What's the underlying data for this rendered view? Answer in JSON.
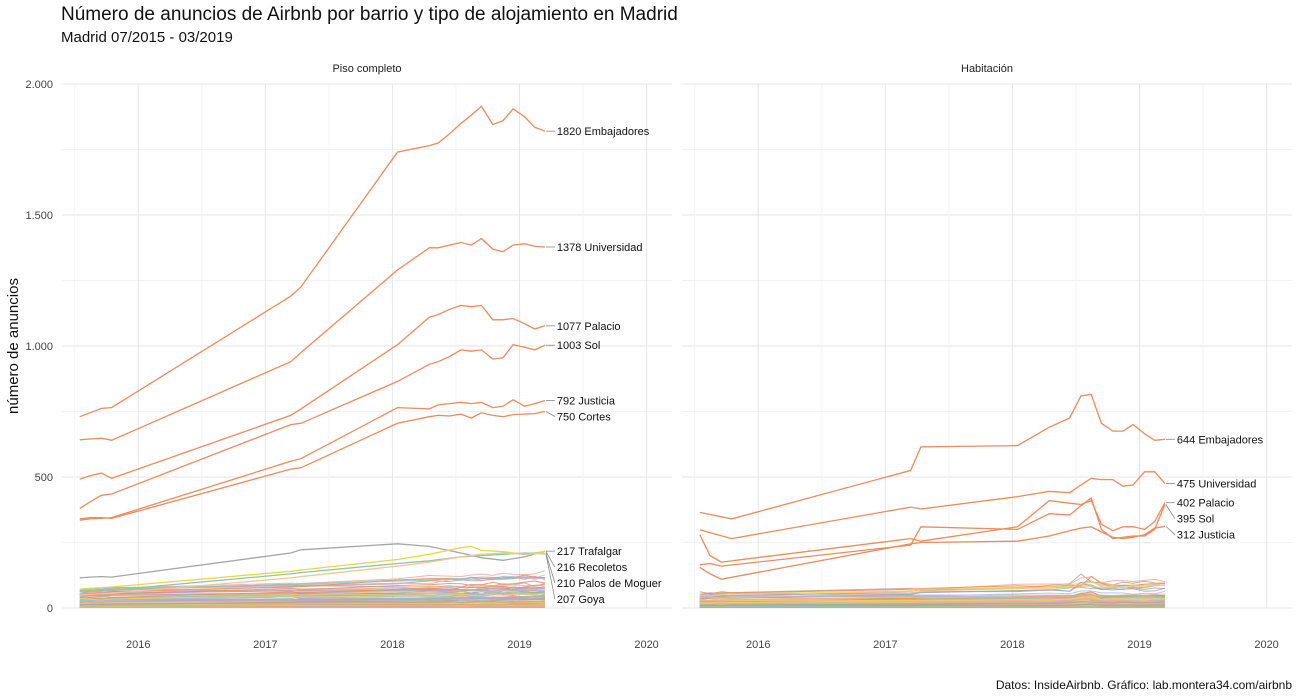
{
  "title": "Número de anuncios de Airbnb por barrio y tipo de alojamiento en Madrid",
  "subtitle": "Madrid 07/2015 - 03/2019",
  "caption": "Datos: InsideAirbnb. Gráfico: lab.montera34.com/airbnb",
  "chart_data": {
    "type": "line",
    "ylabel": "número de anuncios",
    "ylim": [
      0,
      2000
    ],
    "xlim": [
      2015.4,
      2020.2
    ],
    "y_ticks": [
      0,
      500,
      1000,
      1500,
      2000
    ],
    "y_tick_labels": [
      "0",
      "500",
      "1.000",
      "1.500",
      "2.000"
    ],
    "x_ticks": [
      2016,
      2017,
      2018,
      2019,
      2020
    ],
    "x_tick_labels": [
      "2016",
      "2017",
      "2018",
      "2019",
      "2020"
    ],
    "grid": true,
    "highlight_color": "#f08a5d",
    "panels": [
      {
        "name": "Piso completo",
        "series": [
          {
            "name": "Embajadores",
            "label": "1820 Embajadores",
            "color": "#f08a5d",
            "x": [
              2015.54,
              2015.62,
              2015.71,
              2015.79,
              2017.2,
              2017.28,
              2018.04,
              2018.29,
              2018.36,
              2018.45,
              2018.54,
              2018.62,
              2018.7,
              2018.79,
              2018.87,
              2018.95,
              2019.04,
              2019.12,
              2019.2
            ],
            "y": [
              730,
              745,
              762,
              765,
              1190,
              1225,
              1740,
              1765,
              1775,
              1810,
              1850,
              1880,
              1915,
              1845,
              1860,
              1905,
              1875,
              1835,
              1820
            ]
          },
          {
            "name": "Universidad",
            "label": "1378 Universidad",
            "color": "#f08a5d",
            "x": [
              2015.54,
              2015.62,
              2015.71,
              2015.79,
              2017.2,
              2017.28,
              2018.04,
              2018.29,
              2018.36,
              2018.45,
              2018.54,
              2018.62,
              2018.7,
              2018.79,
              2018.87,
              2018.95,
              2019.04,
              2019.12,
              2019.2
            ],
            "y": [
              642,
              645,
              648,
              640,
              940,
              975,
              1290,
              1375,
              1375,
              1385,
              1395,
              1385,
              1410,
              1370,
              1360,
              1385,
              1390,
              1380,
              1378
            ]
          },
          {
            "name": "Palacio",
            "label": "1077 Palacio",
            "color": "#f08a5d",
            "x": [
              2015.54,
              2015.62,
              2015.71,
              2015.79,
              2017.2,
              2017.28,
              2018.04,
              2018.29,
              2018.36,
              2018.45,
              2018.54,
              2018.62,
              2018.7,
              2018.79,
              2018.87,
              2018.95,
              2019.04,
              2019.12,
              2019.2
            ],
            "y": [
              492,
              505,
              515,
              495,
              735,
              760,
              1005,
              1110,
              1120,
              1140,
              1155,
              1150,
              1155,
              1100,
              1100,
              1105,
              1085,
              1065,
              1077
            ]
          },
          {
            "name": "Sol",
            "label": "1003 Sol",
            "color": "#f08a5d",
            "x": [
              2015.54,
              2015.62,
              2015.71,
              2015.79,
              2017.2,
              2017.28,
              2018.04,
              2018.29,
              2018.36,
              2018.45,
              2018.54,
              2018.62,
              2018.7,
              2018.79,
              2018.87,
              2018.95,
              2019.04,
              2019.12,
              2019.2
            ],
            "y": [
              380,
              405,
              430,
              435,
              700,
              705,
              865,
              930,
              940,
              960,
              985,
              980,
              985,
              950,
              955,
              1005,
              995,
              985,
              1003
            ]
          },
          {
            "name": "Justicia",
            "label": "792 Justicia",
            "color": "#f08a5d",
            "x": [
              2015.54,
              2015.62,
              2015.71,
              2015.79,
              2017.2,
              2017.28,
              2018.04,
              2018.29,
              2018.36,
              2018.45,
              2018.54,
              2018.62,
              2018.7,
              2018.79,
              2018.87,
              2018.95,
              2019.04,
              2019.12,
              2019.2
            ],
            "y": [
              335,
              340,
              342,
              345,
              560,
              570,
              765,
              760,
              775,
              780,
              785,
              780,
              785,
              765,
              770,
              795,
              770,
              780,
              792
            ]
          },
          {
            "name": "Cortes",
            "label": "750 Cortes",
            "color": "#f08a5d",
            "x": [
              2015.54,
              2015.62,
              2015.71,
              2015.79,
              2017.2,
              2017.28,
              2018.04,
              2018.29,
              2018.36,
              2018.45,
              2018.54,
              2018.62,
              2018.7,
              2018.79,
              2018.87,
              2018.95,
              2019.04,
              2019.12,
              2019.2
            ],
            "y": [
              340,
              345,
              345,
              342,
              530,
              535,
              705,
              730,
              735,
              733,
              740,
              725,
              745,
              735,
              730,
              738,
              740,
              742,
              750
            ]
          },
          {
            "name": "Trafalgar",
            "label": "217 Trafalgar",
            "color": "#a6a6a6",
            "x": [
              2015.54,
              2015.62,
              2015.71,
              2015.79,
              2017.2,
              2017.28,
              2018.04,
              2018.29,
              2018.54,
              2018.7,
              2018.87,
              2019.04,
              2019.2
            ],
            "y": [
              115,
              118,
              120,
              118,
              210,
              222,
              245,
              235,
              210,
              192,
              182,
              195,
              217
            ]
          },
          {
            "name": "Recoletos",
            "label": "216 Recoletos",
            "color": "#e6d84a",
            "x": [
              2015.54,
              2015.62,
              2015.71,
              2015.79,
              2017.2,
              2017.28,
              2018.04,
              2018.29,
              2018.54,
              2018.62,
              2018.7,
              2018.87,
              2019.04,
              2019.2
            ],
            "y": [
              72,
              75,
              78,
              80,
              140,
              145,
              185,
              205,
              230,
              235,
              220,
              215,
              205,
              216
            ]
          },
          {
            "name": "Goya",
            "label": "207 Goya",
            "color": "#8dc6a8",
            "x": [
              2015.54,
              2015.62,
              2015.71,
              2015.79,
              2017.2,
              2017.28,
              2018.04,
              2018.29,
              2018.54,
              2018.7,
              2018.87,
              2019.04,
              2019.2
            ],
            "y": [
              62,
              64,
              66,
              68,
              130,
              135,
              170,
              180,
              195,
              200,
              205,
              210,
              207
            ]
          },
          {
            "name": "Palos de Moguer",
            "label": "210 Palos de Moguer",
            "color": "#f7c38e",
            "x": [
              2015.54,
              2015.62,
              2015.71,
              2015.79,
              2017.2,
              2017.28,
              2018.04,
              2018.29,
              2018.54,
              2018.7,
              2018.87,
              2019.04,
              2019.2
            ],
            "y": [
              50,
              52,
              55,
              56,
              115,
              120,
              160,
              175,
              195,
              205,
              210,
              205,
              210
            ]
          }
        ]
      },
      {
        "name": "Habitación",
        "series": [
          {
            "name": "Embajadores",
            "label": "644 Embajadores",
            "color": "#f08a5d",
            "x": [
              2015.54,
              2015.79,
              2017.2,
              2017.28,
              2018.04,
              2018.29,
              2018.45,
              2018.54,
              2018.62,
              2018.7,
              2018.79,
              2018.87,
              2018.95,
              2019.04,
              2019.12,
              2019.2
            ],
            "y": [
              365,
              340,
              525,
              615,
              620,
              690,
              725,
              810,
              815,
              705,
              675,
              675,
              700,
              665,
              640,
              644
            ]
          },
          {
            "name": "Universidad",
            "label": "475 Universidad",
            "color": "#f08a5d",
            "x": [
              2015.54,
              2015.79,
              2017.2,
              2017.28,
              2018.04,
              2018.29,
              2018.45,
              2018.54,
              2018.62,
              2018.7,
              2018.79,
              2018.87,
              2018.95,
              2019.04,
              2019.12,
              2019.2
            ],
            "y": [
              298,
              265,
              385,
              378,
              425,
              445,
              440,
              470,
              495,
              490,
              490,
              465,
              470,
              520,
              520,
              475
            ]
          },
          {
            "name": "Palacio",
            "label": "402 Palacio",
            "color": "#f08a5d",
            "x": [
              2015.54,
              2015.62,
              2015.71,
              2017.2,
              2017.28,
              2018.04,
              2018.29,
              2018.45,
              2018.54,
              2018.62,
              2018.7,
              2018.79,
              2018.87,
              2018.95,
              2019.04,
              2019.12,
              2019.2
            ],
            "y": [
              280,
              200,
              175,
              265,
              255,
              310,
              410,
              400,
              395,
              410,
              320,
              295,
              310,
              310,
              300,
              330,
              402
            ]
          },
          {
            "name": "Sol",
            "label": "395 Sol",
            "color": "#f08a5d",
            "x": [
              2015.54,
              2015.62,
              2015.71,
              2017.2,
              2017.28,
              2018.04,
              2018.29,
              2018.45,
              2018.54,
              2018.62,
              2018.7,
              2018.79,
              2018.87,
              2018.95,
              2019.04,
              2019.12,
              2019.2
            ],
            "y": [
              165,
              170,
              160,
              240,
              310,
              300,
              360,
              355,
              390,
              420,
              300,
              265,
              270,
              275,
              275,
              300,
              395
            ]
          },
          {
            "name": "Justicia",
            "label": "312 Justicia",
            "color": "#f08a5d",
            "x": [
              2015.54,
              2015.62,
              2015.71,
              2017.2,
              2017.28,
              2018.04,
              2018.29,
              2018.45,
              2018.54,
              2018.62,
              2018.7,
              2018.79,
              2018.87,
              2018.95,
              2019.04,
              2019.12,
              2019.2
            ],
            "y": [
              155,
              130,
              110,
              245,
              250,
              255,
              275,
              295,
              305,
              310,
              290,
              270,
              265,
              270,
              280,
              305,
              312
            ]
          }
        ]
      }
    ]
  }
}
